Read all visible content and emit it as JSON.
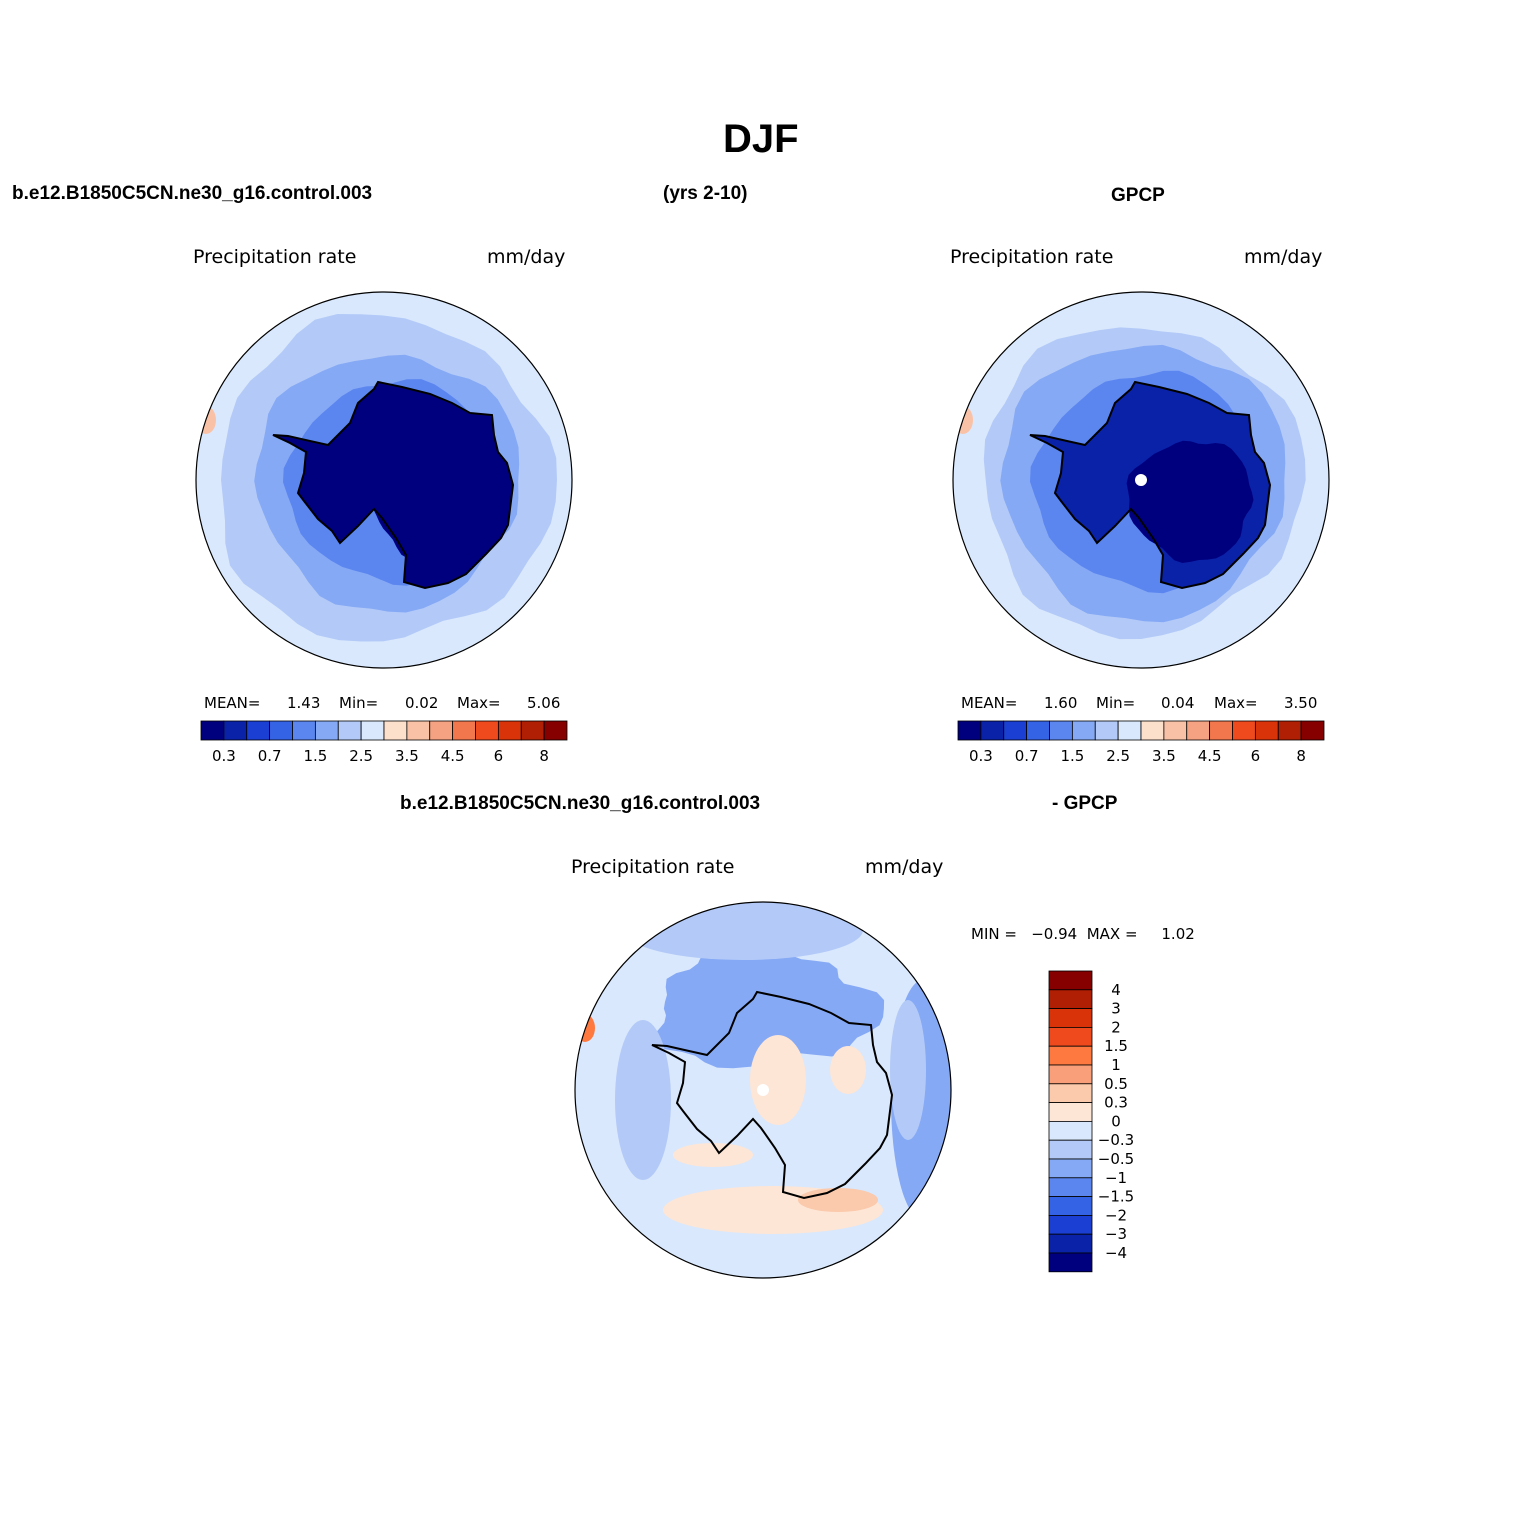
{
  "page": {
    "title": "DJF",
    "model_case": "b.e12.B1850C5CN.ne30_g16.control.003",
    "years": "(yrs 2-10)",
    "obs_name": "GPCP",
    "diff_case": "b.e12.B1850C5CN.ne30_g16.control.003",
    "diff_obs": "- GPCP"
  },
  "panels": {
    "model": {
      "title": "Precipitation  rate",
      "units": "mm/day",
      "mean_label": "MEAN=",
      "mean_value": "1.43",
      "min_label": "Min=",
      "min_value": "0.02",
      "max_label": "Max=",
      "max_value": "5.06"
    },
    "obs": {
      "title": "Precipitation  rate",
      "units": "mm/day",
      "mean_label": "MEAN=",
      "mean_value": "1.60",
      "min_label": "Min=",
      "min_value": "0.04",
      "max_label": "Max=",
      "max_value": "3.50"
    },
    "diff": {
      "title": "Precipitation  rate",
      "units": "mm/day",
      "minmax": "MIN =   −0.94  MAX =     1.02"
    }
  },
  "chart_data": [
    {
      "type": "heatmap",
      "title": "Precipitation rate",
      "units": "mm/day",
      "projection": "south polar stereographic",
      "subtitle": "b.e12.B1850C5CN.ne30_g16.control.003 (yrs 2-10)",
      "mean": 1.43,
      "min": 0.02,
      "max": 5.06,
      "contour_levels": [
        0.2,
        0.3,
        0.5,
        0.7,
        1,
        1.5,
        2,
        2.5,
        3,
        3.5,
        4,
        4.5,
        5,
        6,
        7,
        8
      ],
      "colorbar_tick_labels": [
        "0.3",
        "0.7",
        "1.5",
        "2.5",
        "3.5",
        "4.5",
        "6",
        "8"
      ],
      "colors": [
        "#00007f",
        "#0a22a8",
        "#1a3fd2",
        "#3563e6",
        "#5b86f0",
        "#86a9f5",
        "#b3caf8",
        "#d9e8fc",
        "#fde0cc",
        "#f9c2a6",
        "#f5a282",
        "#f2774d",
        "#ee4a1e",
        "#d93309",
        "#b01f04",
        "#870000"
      ]
    },
    {
      "type": "heatmap",
      "title": "Precipitation rate",
      "units": "mm/day",
      "projection": "south polar stereographic",
      "subtitle": "GPCP",
      "mean": 1.6,
      "min": 0.04,
      "max": 3.5,
      "contour_levels": [
        0.2,
        0.3,
        0.5,
        0.7,
        1,
        1.5,
        2,
        2.5,
        3,
        3.5,
        4,
        4.5,
        5,
        6,
        7,
        8
      ],
      "colorbar_tick_labels": [
        "0.3",
        "0.7",
        "1.5",
        "2.5",
        "3.5",
        "4.5",
        "6",
        "8"
      ],
      "colors": [
        "#00007f",
        "#0a22a8",
        "#1a3fd2",
        "#3563e6",
        "#5b86f0",
        "#86a9f5",
        "#b3caf8",
        "#d9e8fc",
        "#fde0cc",
        "#f9c2a6",
        "#f5a282",
        "#f2774d",
        "#ee4a1e",
        "#d93309",
        "#b01f04",
        "#870000"
      ]
    },
    {
      "type": "heatmap",
      "title": "Precipitation rate",
      "units": "mm/day",
      "projection": "south polar stereographic",
      "subtitle": "b.e12.B1850C5CN.ne30_g16.control.003 - GPCP",
      "min": -0.94,
      "max": 1.02,
      "colorbar_tick_labels": [
        "4",
        "3",
        "2",
        "1.5",
        "1",
        "0.5",
        "0.3",
        "0",
        "−0.3",
        "−0.5",
        "−1",
        "−1.5",
        "−2",
        "−3",
        "−4"
      ],
      "colors": [
        "#870000",
        "#b01f04",
        "#d93309",
        "#ee4a1e",
        "#fd7940",
        "#f9a07a",
        "#fbc9ab",
        "#fde6d6",
        "#d9e8fc",
        "#b3caf8",
        "#86a9f5",
        "#5b86f0",
        "#3563e6",
        "#1a3fd2",
        "#0a22a8",
        "#00007f"
      ]
    }
  ],
  "colors": {
    "land_outline": "#000000",
    "background": "#ffffff"
  }
}
